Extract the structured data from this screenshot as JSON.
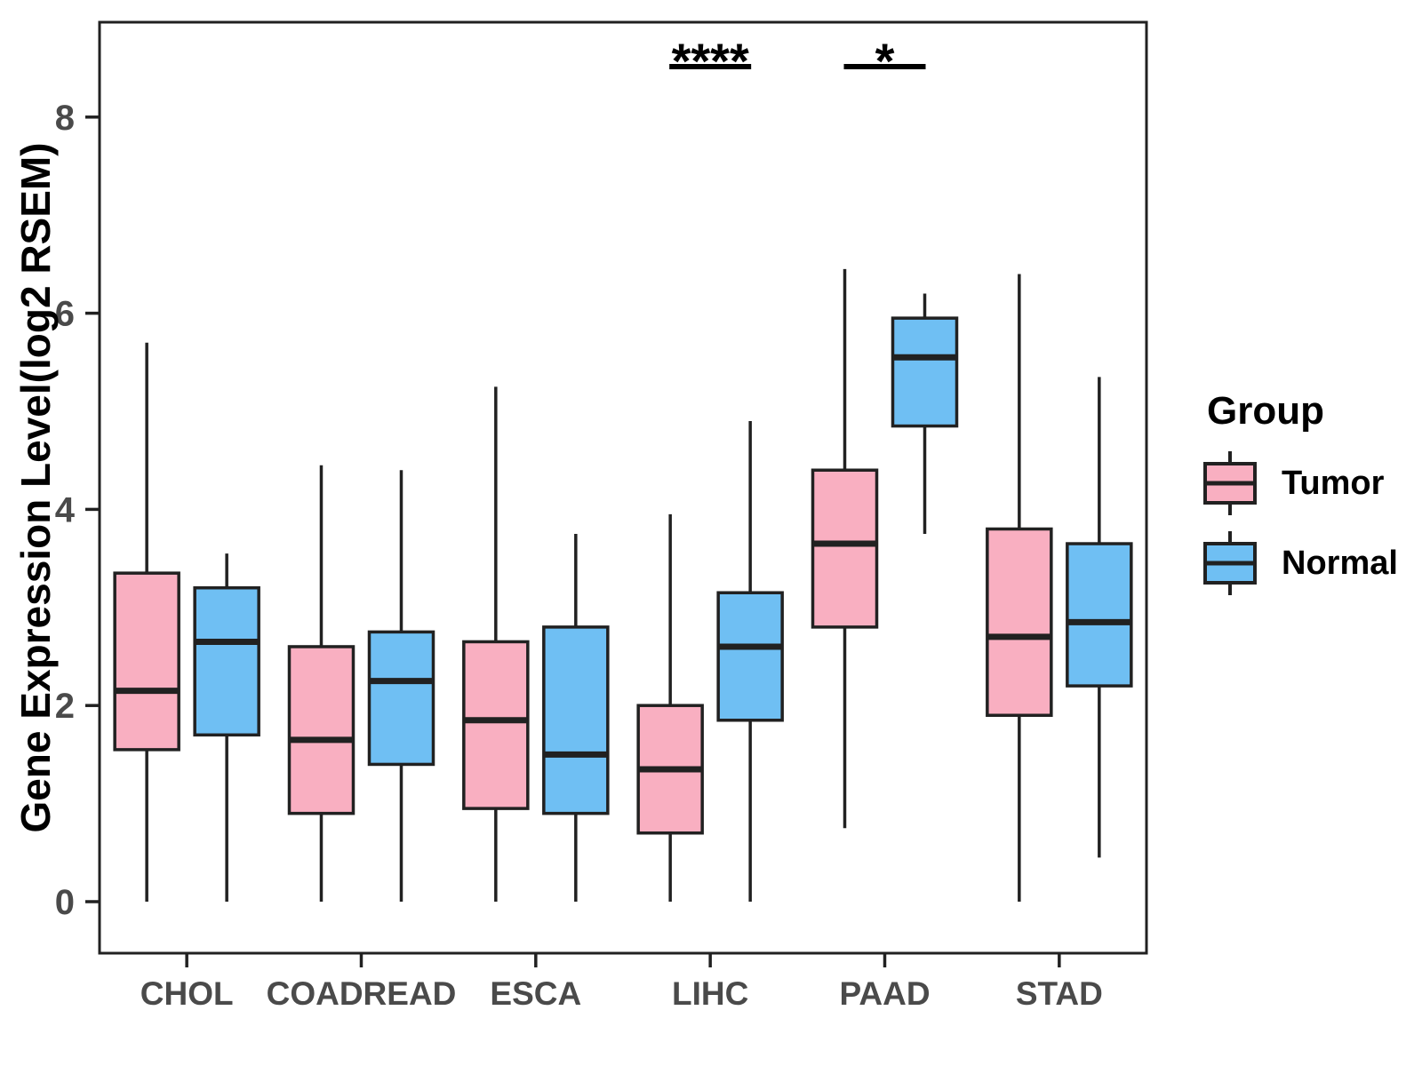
{
  "chart_data": {
    "type": "box",
    "title": "",
    "ylabel": "Gene Expression Level(log2 RSEM)",
    "xlabel": "",
    "ylim": [
      -0.5,
      9.0
    ],
    "yticks": [
      0,
      2,
      4,
      6,
      8
    ],
    "grid": false,
    "legend_position": "right",
    "categories": [
      "CHOL",
      "COADREAD",
      "ESCA",
      "LIHC",
      "PAAD",
      "STAD"
    ],
    "series": [
      {
        "name": "Tumor",
        "color": "#F9AFC1",
        "boxes": [
          {
            "category": "CHOL",
            "min": 0.0,
            "q1": 1.55,
            "median": 2.15,
            "q3": 3.35,
            "max": 5.7
          },
          {
            "category": "COADREAD",
            "min": 0.0,
            "q1": 0.9,
            "median": 1.65,
            "q3": 2.6,
            "max": 4.45
          },
          {
            "category": "ESCA",
            "min": 0.0,
            "q1": 0.95,
            "median": 1.85,
            "q3": 2.65,
            "max": 5.25
          },
          {
            "category": "LIHC",
            "min": 0.0,
            "q1": 0.7,
            "median": 1.35,
            "q3": 2.0,
            "max": 3.95
          },
          {
            "category": "PAAD",
            "min": 0.75,
            "q1": 2.8,
            "median": 3.65,
            "q3": 4.4,
            "max": 6.45
          },
          {
            "category": "STAD",
            "min": 0.0,
            "q1": 1.9,
            "median": 2.7,
            "q3": 3.8,
            "max": 6.4
          }
        ]
      },
      {
        "name": "Normal",
        "color": "#6FBFF3",
        "boxes": [
          {
            "category": "CHOL",
            "min": 0.0,
            "q1": 1.7,
            "median": 2.65,
            "q3": 3.2,
            "max": 3.55
          },
          {
            "category": "COADREAD",
            "min": 0.0,
            "q1": 1.4,
            "median": 2.25,
            "q3": 2.75,
            "max": 4.4
          },
          {
            "category": "ESCA",
            "min": 0.0,
            "q1": 0.9,
            "median": 1.5,
            "q3": 2.8,
            "max": 3.75
          },
          {
            "category": "LIHC",
            "min": 0.0,
            "q1": 1.85,
            "median": 2.6,
            "q3": 3.15,
            "max": 4.9
          },
          {
            "category": "PAAD",
            "min": 3.75,
            "q1": 4.85,
            "median": 5.55,
            "q3": 5.95,
            "max": 6.2
          },
          {
            "category": "STAD",
            "min": 0.45,
            "q1": 2.2,
            "median": 2.85,
            "q3": 3.65,
            "max": 5.35
          }
        ]
      }
    ],
    "annotations": [
      {
        "category": "LIHC",
        "label": "****"
      },
      {
        "category": "PAAD",
        "label": "*"
      }
    ]
  },
  "legend": {
    "title": "Group",
    "entries": [
      {
        "label": "Tumor",
        "color": "#F9AFC1"
      },
      {
        "label": "Normal",
        "color": "#6FBFF3"
      }
    ]
  },
  "style": {
    "stroke_color": "#212121",
    "axis_text_color": "#4a4a4a",
    "background": "#ffffff"
  }
}
